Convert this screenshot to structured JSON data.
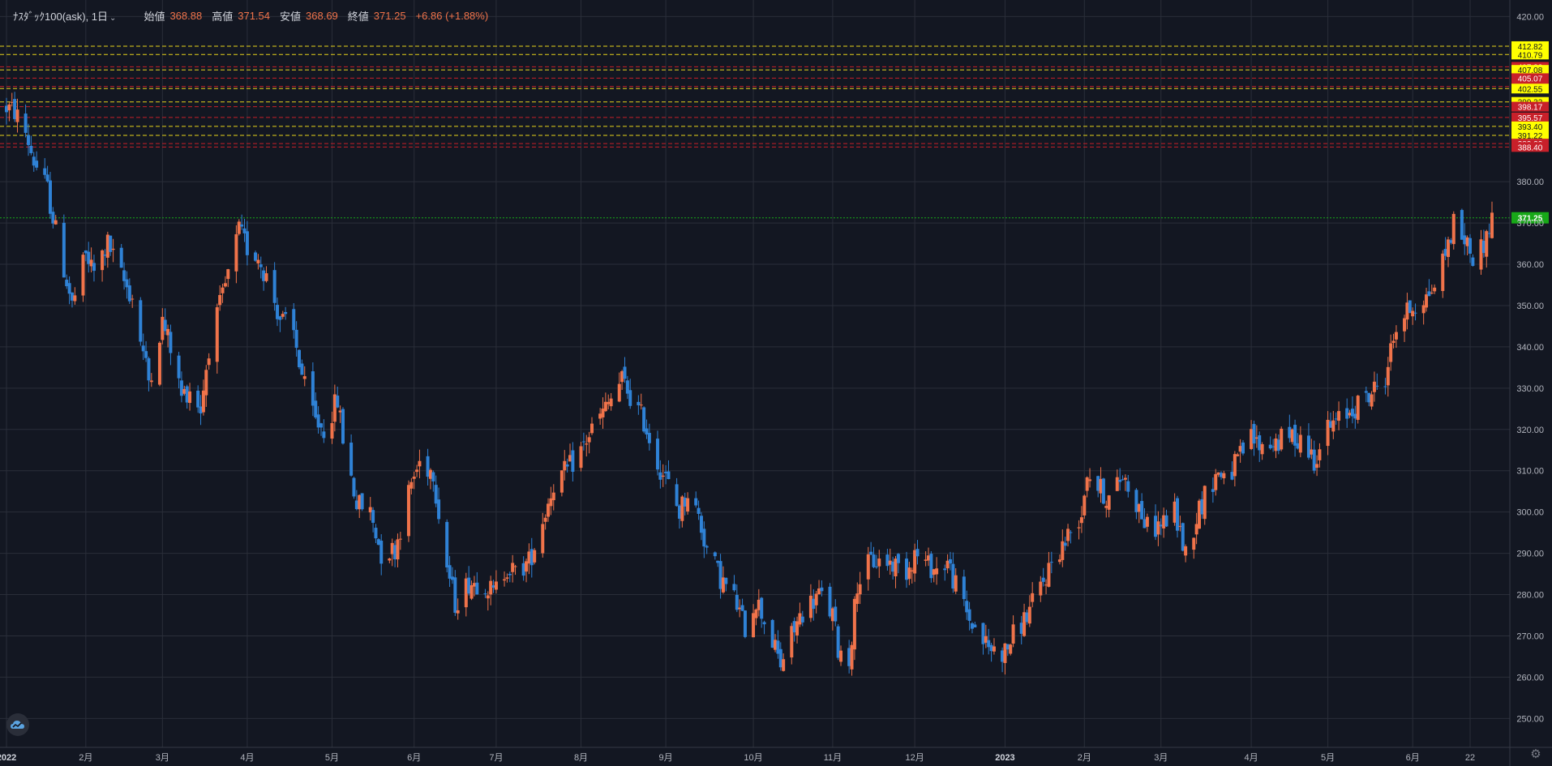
{
  "legend": {
    "symbol": "ﾅｽﾀﾞｯｸ100(ask), 1日",
    "open_label": "始値",
    "open": "368.88",
    "high_label": "高値",
    "high": "371.54",
    "low_label": "安値",
    "low": "368.69",
    "close_label": "終値",
    "close": "371.25",
    "change": "+6.86 (+1.88%)"
  },
  "colors": {
    "background": "#131722",
    "grid": "#2a2e39",
    "up": "#f0734a",
    "down": "#2f82d6",
    "axis_text": "#b2b5be",
    "resistance_label": "#c8202a",
    "support_label": "#ffff00",
    "current_price": "#18a818"
  },
  "chart_data": {
    "type": "candlestick",
    "series_name": "ﾅｽﾀﾞｯｸ100(ask)",
    "interval": "1日",
    "ylim": [
      243,
      424
    ],
    "y_ticks": [
      "250.00",
      "260.00",
      "270.00",
      "280.00",
      "290.00",
      "300.00",
      "310.00",
      "320.00",
      "330.00",
      "340.00",
      "350.00",
      "360.00",
      "370.00",
      "380.00",
      "420.00"
    ],
    "x_ticks": [
      "2022",
      "2月",
      "3月",
      "4月",
      "5月",
      "6月",
      "7月",
      "8月",
      "9月",
      "10月",
      "11月",
      "12月",
      "2023",
      "2月",
      "3月",
      "4月",
      "5月",
      "6月",
      "22"
    ],
    "x_start": "2022-01-03",
    "x_end": "2023-06-30",
    "x_tick_dates": [
      "2022-01-03",
      "2022-02-01",
      "2022-03-01",
      "2022-04-01",
      "2022-05-02",
      "2022-06-01",
      "2022-07-01",
      "2022-08-01",
      "2022-09-01",
      "2022-10-03",
      "2022-11-01",
      "2022-12-01",
      "2023-01-03",
      "2023-02-01",
      "2023-03-01",
      "2023-04-03",
      "2023-05-01",
      "2023-06-01",
      "2023-06-22"
    ],
    "grid": true,
    "price_path": [
      [
        "2022-01-03",
        398
      ],
      [
        "2022-01-06",
        397
      ],
      [
        "2022-01-10",
        392
      ],
      [
        "2022-01-13",
        385
      ],
      [
        "2022-01-18",
        378
      ],
      [
        "2022-01-21",
        368
      ],
      [
        "2022-01-27",
        350
      ],
      [
        "2022-02-01",
        362
      ],
      [
        "2022-02-04",
        358
      ],
      [
        "2022-02-09",
        365
      ],
      [
        "2022-02-14",
        357
      ],
      [
        "2022-02-18",
        352
      ],
      [
        "2022-02-24",
        332
      ],
      [
        "2022-03-01",
        346
      ],
      [
        "2022-03-04",
        340
      ],
      [
        "2022-03-08",
        328
      ],
      [
        "2022-03-11",
        330
      ],
      [
        "2022-03-15",
        325
      ],
      [
        "2022-03-18",
        340
      ],
      [
        "2022-03-23",
        352
      ],
      [
        "2022-03-29",
        368
      ],
      [
        "2022-04-01",
        364
      ],
      [
        "2022-04-05",
        362
      ],
      [
        "2022-04-08",
        357
      ],
      [
        "2022-04-13",
        347
      ],
      [
        "2022-04-18",
        343
      ],
      [
        "2022-04-22",
        330
      ],
      [
        "2022-04-26",
        322
      ],
      [
        "2022-04-29",
        320
      ],
      [
        "2022-05-04",
        327
      ],
      [
        "2022-05-06",
        318
      ],
      [
        "2022-05-11",
        302
      ],
      [
        "2022-05-16",
        300
      ],
      [
        "2022-05-20",
        290
      ],
      [
        "2022-05-25",
        291
      ],
      [
        "2022-05-31",
        307
      ],
      [
        "2022-06-03",
        312
      ],
      [
        "2022-06-08",
        310
      ],
      [
        "2022-06-10",
        300
      ],
      [
        "2022-06-13",
        287
      ],
      [
        "2022-06-16",
        278
      ],
      [
        "2022-06-21",
        283
      ],
      [
        "2022-06-27",
        283
      ],
      [
        "2022-06-30",
        280
      ],
      [
        "2022-07-05",
        287
      ],
      [
        "2022-07-08",
        285
      ],
      [
        "2022-07-13",
        288
      ],
      [
        "2022-07-18",
        298
      ],
      [
        "2022-07-22",
        307
      ],
      [
        "2022-07-27",
        310
      ],
      [
        "2022-08-01",
        315
      ],
      [
        "2022-08-05",
        320
      ],
      [
        "2022-08-10",
        325
      ],
      [
        "2022-08-16",
        332
      ],
      [
        "2022-08-19",
        328
      ],
      [
        "2022-08-24",
        322
      ],
      [
        "2022-08-29",
        312
      ],
      [
        "2022-09-01",
        308
      ],
      [
        "2022-09-06",
        300
      ],
      [
        "2022-09-09",
        305
      ],
      [
        "2022-09-13",
        299
      ],
      [
        "2022-09-16",
        291
      ],
      [
        "2022-09-21",
        284
      ],
      [
        "2022-09-26",
        279
      ],
      [
        "2022-09-30",
        272
      ],
      [
        "2022-10-04",
        279
      ],
      [
        "2022-10-07",
        274
      ],
      [
        "2022-10-13",
        263
      ],
      [
        "2022-10-17",
        270
      ],
      [
        "2022-10-21",
        276
      ],
      [
        "2022-10-27",
        280
      ],
      [
        "2022-11-01",
        275
      ],
      [
        "2022-11-03",
        267
      ],
      [
        "2022-11-07",
        264
      ],
      [
        "2022-11-10",
        283
      ],
      [
        "2022-11-15",
        288
      ],
      [
        "2022-11-21",
        288
      ],
      [
        "2022-11-28",
        286
      ],
      [
        "2022-12-01",
        290
      ],
      [
        "2022-12-06",
        287
      ],
      [
        "2022-12-09",
        286
      ],
      [
        "2022-12-13",
        288
      ],
      [
        "2022-12-16",
        282
      ],
      [
        "2022-12-21",
        274
      ],
      [
        "2022-12-28",
        267
      ],
      [
        "2023-01-03",
        266
      ],
      [
        "2023-01-06",
        270
      ],
      [
        "2023-01-11",
        275
      ],
      [
        "2023-01-17",
        283
      ],
      [
        "2023-01-20",
        288
      ],
      [
        "2023-01-25",
        293
      ],
      [
        "2023-01-31",
        300
      ],
      [
        "2023-02-02",
        310
      ],
      [
        "2023-02-06",
        306
      ],
      [
        "2023-02-10",
        303
      ],
      [
        "2023-02-15",
        309
      ],
      [
        "2023-02-21",
        301
      ],
      [
        "2023-02-24",
        296
      ],
      [
        "2023-03-01",
        297
      ],
      [
        "2023-03-06",
        300
      ],
      [
        "2023-03-10",
        290
      ],
      [
        "2023-03-15",
        301
      ],
      [
        "2023-03-21",
        309
      ],
      [
        "2023-03-27",
        310
      ],
      [
        "2023-04-03",
        318
      ],
      [
        "2023-04-06",
        316
      ],
      [
        "2023-04-12",
        317
      ],
      [
        "2023-04-17",
        318
      ],
      [
        "2023-04-21",
        318
      ],
      [
        "2023-04-26",
        313
      ],
      [
        "2023-05-01",
        320
      ],
      [
        "2023-05-05",
        322
      ],
      [
        "2023-05-10",
        325
      ],
      [
        "2023-05-16",
        328
      ],
      [
        "2023-05-22",
        333
      ],
      [
        "2023-05-26",
        345
      ],
      [
        "2023-06-01",
        350
      ],
      [
        "2023-06-06",
        352
      ],
      [
        "2023-06-09",
        355
      ],
      [
        "2023-06-14",
        365
      ],
      [
        "2023-06-16",
        370
      ],
      [
        "2023-06-20",
        366
      ],
      [
        "2023-06-23",
        362
      ],
      [
        "2023-06-26",
        364
      ],
      [
        "2023-06-27",
        365
      ],
      [
        "2023-06-30",
        371
      ]
    ],
    "horizontal_levels": [
      {
        "value": 412.82,
        "label": "412.82",
        "style": "support"
      },
      {
        "value": 410.79,
        "label": "410.79",
        "style": "support"
      },
      {
        "value": 407.82,
        "label": "407.82",
        "style": "resistance"
      },
      {
        "value": 407.08,
        "label": "407.08",
        "style": "support"
      },
      {
        "value": 405.07,
        "label": "405.07",
        "style": "resistance"
      },
      {
        "value": 403.04,
        "label": "403.04",
        "style": "resistance"
      },
      {
        "value": 402.55,
        "label": "402.55",
        "style": "support"
      },
      {
        "value": 399.32,
        "label": "399.32",
        "style": "support"
      },
      {
        "value": 398.17,
        "label": "398.17",
        "style": "resistance"
      },
      {
        "value": 395.57,
        "label": "395.57",
        "style": "resistance"
      },
      {
        "value": 393.4,
        "label": "393.40",
        "style": "support"
      },
      {
        "value": 391.22,
        "label": "391.22",
        "style": "support"
      },
      {
        "value": 389.22,
        "label": "389.22",
        "style": "resistance"
      },
      {
        "value": 388.4,
        "label": "388.40",
        "style": "resistance"
      }
    ],
    "current_price": {
      "value": 371.25,
      "label": "371.25"
    }
  }
}
